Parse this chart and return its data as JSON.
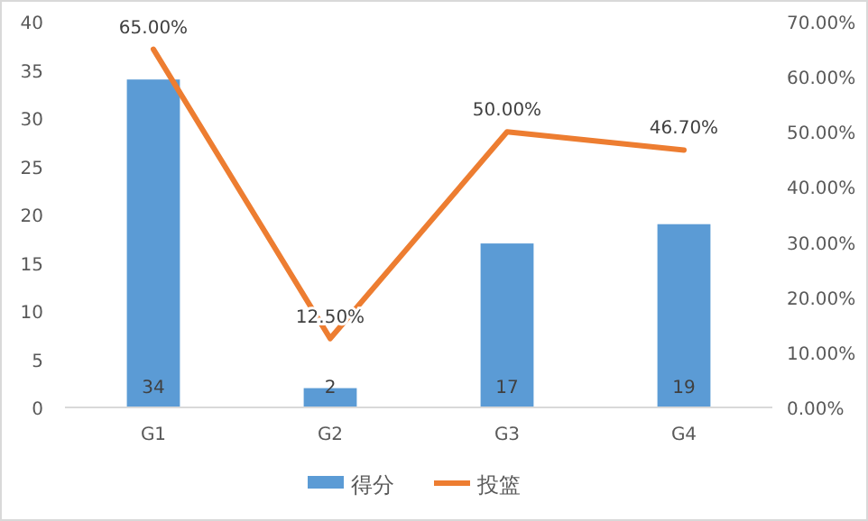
{
  "chart_data": {
    "type": "bar",
    "categories": [
      "G1",
      "G2",
      "G3",
      "G4"
    ],
    "series": [
      {
        "name": "得分",
        "color": "#5b9bd5",
        "values": [
          34,
          2,
          17,
          19
        ],
        "value_labels": [
          "34",
          "2",
          "17",
          "19"
        ]
      },
      {
        "name": "投篮",
        "type": "line",
        "axis": "y2",
        "color": "#ed7d31",
        "values": [
          65,
          12.5,
          50,
          46.7
        ],
        "value_labels": [
          "65.00%",
          "12.50%",
          "50.00%",
          "46.70%"
        ]
      }
    ],
    "ylim": [
      0,
      40
    ],
    "yticks": [
      0,
      5,
      10,
      15,
      20,
      25,
      30,
      35,
      40
    ],
    "y2lim": [
      0,
      70
    ],
    "y2ticks": [
      {
        "value": 0,
        "label": "0.00%"
      },
      {
        "value": 10,
        "label": "10.00%"
      },
      {
        "value": 20,
        "label": "20.00%"
      },
      {
        "value": 30,
        "label": "30.00%"
      },
      {
        "value": 40,
        "label": "40.00%"
      },
      {
        "value": 50,
        "label": "50.00%"
      },
      {
        "value": 60,
        "label": "60.00%"
      },
      {
        "value": 70,
        "label": "70.00%"
      }
    ],
    "legend": "bottom",
    "marker": "none",
    "line_style": "solid"
  }
}
